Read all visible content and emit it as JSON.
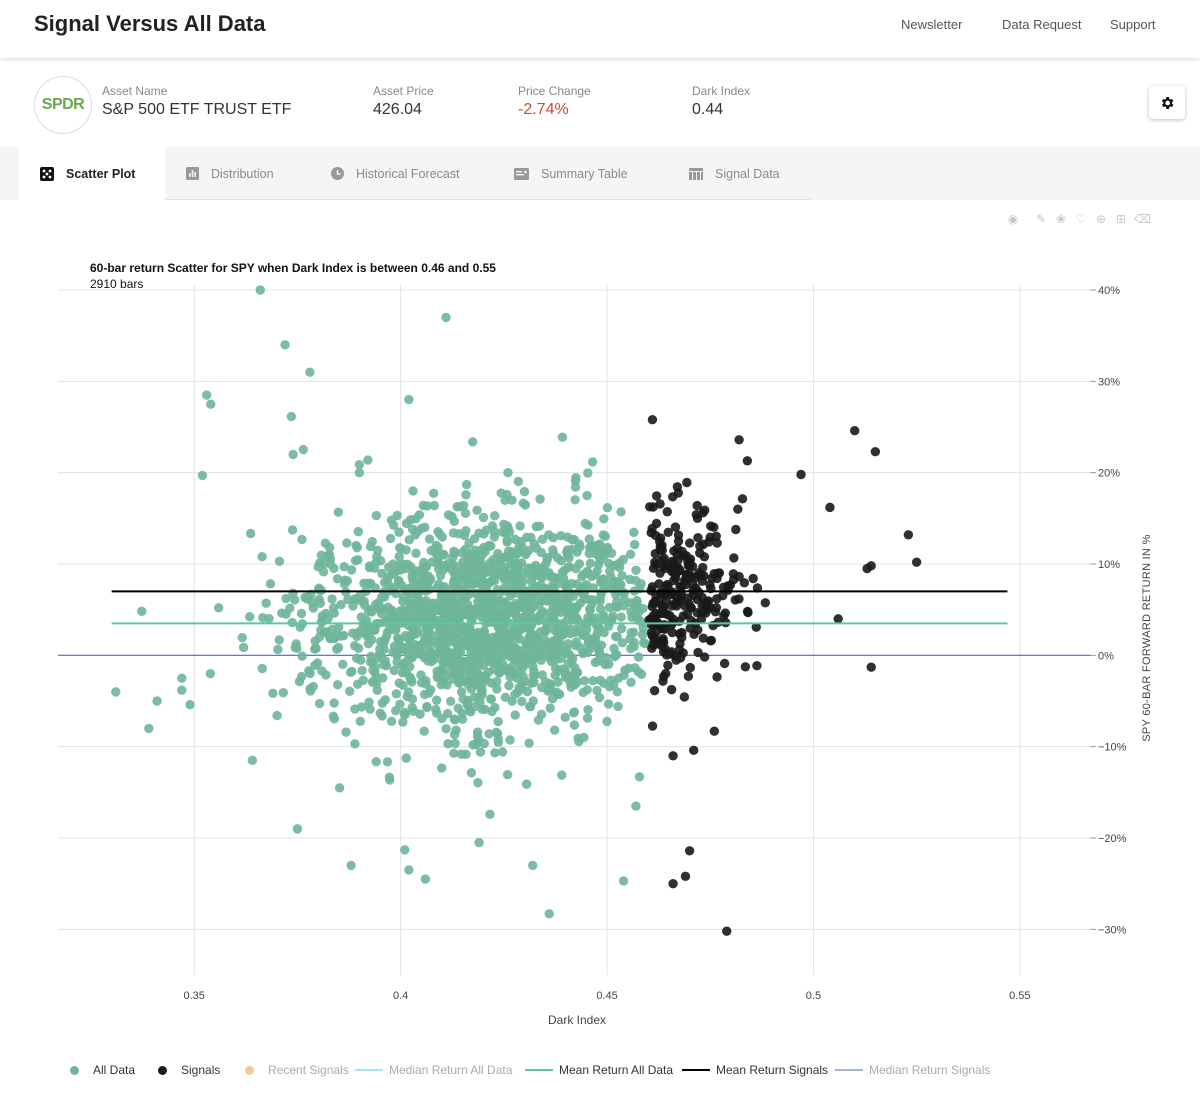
{
  "header": {
    "title": "Signal Versus All Data",
    "nav": [
      "Newsletter",
      "Data Request",
      "Support"
    ]
  },
  "asset": {
    "logo_text": "SPDR",
    "name_label": "Asset Name",
    "name_value": "S&P 500 ETF TRUST ETF",
    "price_label": "Asset Price",
    "price_value": "426.04",
    "change_label": "Price Change",
    "change_value": "-2.74%",
    "dark_label": "Dark Index",
    "dark_value": "0.44",
    "settings_icon": "gear-icon"
  },
  "tabs": [
    {
      "label": "Scatter Plot",
      "icon": "dice-icon",
      "active": true
    },
    {
      "label": "Distribution",
      "icon": "bar-chart-icon",
      "active": false
    },
    {
      "label": "Historical Forecast",
      "icon": "clock-icon",
      "active": false
    },
    {
      "label": "Summary Table",
      "icon": "table-summary-icon",
      "active": false
    },
    {
      "label": "Signal Data",
      "icon": "grid-icon",
      "active": false
    }
  ],
  "toolbar": [
    "camera-icon",
    "pencil-icon",
    "lasso-icon",
    "heart-icon",
    "plus-circle-icon",
    "plus-square-icon",
    "eraser-icon"
  ],
  "colors": {
    "all_data": "#6fb59a",
    "signals": "#1a1a1a",
    "recent": "#f2c99a",
    "median_all": "#a7e4ee",
    "mean_all": "#5cc7a0",
    "mean_signals": "#000000",
    "median_signals": "#a4b3d6",
    "zero_line": "#5561d0"
  },
  "chart_data": {
    "type": "scatter",
    "title": "60-bar return Scatter for SPY when Dark Index is between 0.46 and 0.55",
    "subtitle": "2910 bars",
    "xlabel": "Dark Index",
    "ylabel": "SPY 60-BAR FORWARD RETURN IN %",
    "xlim": [
      0.317,
      0.567
    ],
    "ylim": [
      -35,
      40
    ],
    "x_ticks": [
      0.35,
      0.4,
      0.45,
      0.5,
      0.55
    ],
    "x_tick_labels": [
      "0.35",
      "0.4",
      "0.45",
      "0.5",
      "0.55"
    ],
    "y_ticks": [
      40,
      30,
      20,
      10,
      0,
      -10,
      -20,
      -30
    ],
    "y_tick_labels": [
      "40%",
      "30%",
      "20%",
      "10%",
      "0%",
      "−10%",
      "−20%",
      "−30%"
    ],
    "y_axis_side": "right",
    "grid": true,
    "series": [
      {
        "name": "All Data",
        "kind": "markers",
        "n_points": 2910,
        "outliers": [
          [
            0.366,
            40
          ],
          [
            0.411,
            37
          ],
          [
            0.372,
            34
          ],
          [
            0.378,
            31
          ],
          [
            0.353,
            28.5
          ],
          [
            0.354,
            27.5
          ],
          [
            0.402,
            28
          ],
          [
            0.352,
            19.7
          ],
          [
            0.39,
            20
          ],
          [
            0.426,
            20
          ],
          [
            0.403,
            18
          ],
          [
            0.416,
            18.7
          ],
          [
            0.331,
            -4
          ],
          [
            0.339,
            -8
          ],
          [
            0.341,
            -5
          ],
          [
            0.347,
            -2.5
          ],
          [
            0.375,
            -19
          ],
          [
            0.388,
            -23
          ],
          [
            0.401,
            -21.3
          ],
          [
            0.402,
            -23.5
          ],
          [
            0.406,
            -24.5
          ],
          [
            0.436,
            -28.3
          ],
          [
            0.454,
            -24.7
          ],
          [
            0.432,
            -23
          ],
          [
            0.419,
            -20.5
          ],
          [
            0.457,
            -16.5
          ]
        ]
      },
      {
        "name": "Signals",
        "kind": "markers",
        "outliers": [
          [
            0.461,
            25.8
          ],
          [
            0.482,
            23.6
          ],
          [
            0.51,
            24.6
          ],
          [
            0.515,
            22.3
          ],
          [
            0.484,
            21.3
          ],
          [
            0.497,
            19.8
          ],
          [
            0.504,
            16.2
          ],
          [
            0.523,
            13.2
          ],
          [
            0.525,
            10.2
          ],
          [
            0.513,
            9.5
          ],
          [
            0.514,
            9.8
          ],
          [
            0.506,
            4.0
          ],
          [
            0.514,
            -1.3
          ],
          [
            0.479,
            -30.2
          ],
          [
            0.466,
            -25.0
          ],
          [
            0.469,
            -24.2
          ],
          [
            0.47,
            -21.4
          ],
          [
            0.466,
            -11.0
          ],
          [
            0.471,
            -10.4
          ],
          [
            0.476,
            -8.3
          ]
        ]
      },
      {
        "name": "Recent Signals",
        "kind": "markers",
        "visible": false
      },
      {
        "name": "Median Return All Data",
        "kind": "line",
        "visible": false
      },
      {
        "name": "Mean Return All Data",
        "kind": "hline",
        "y": 3.5,
        "x_range": [
          0.33,
          0.547
        ]
      },
      {
        "name": "Mean Return Signals",
        "kind": "hline",
        "y": 7.0,
        "x_range": [
          0.33,
          0.547
        ]
      },
      {
        "name": "Median Return Signals",
        "kind": "line",
        "visible": false
      }
    ],
    "legend_position": "bottom",
    "legend": [
      {
        "label": "All Data",
        "kind": "dot",
        "color_key": "all_data",
        "active": true
      },
      {
        "label": "Signals",
        "kind": "dot",
        "color_key": "signals",
        "active": true
      },
      {
        "label": "Recent Signals",
        "kind": "dot",
        "color_key": "recent",
        "active": false
      },
      {
        "label": "Median Return All Data",
        "kind": "line",
        "color_key": "median_all",
        "active": false
      },
      {
        "label": "Mean Return All Data",
        "kind": "line",
        "color_key": "mean_all",
        "active": true
      },
      {
        "label": "Mean Return Signals",
        "kind": "line",
        "color_key": "mean_signals",
        "active": true
      },
      {
        "label": "Median Return Signals",
        "kind": "line",
        "color_key": "median_signals",
        "active": false
      }
    ]
  }
}
